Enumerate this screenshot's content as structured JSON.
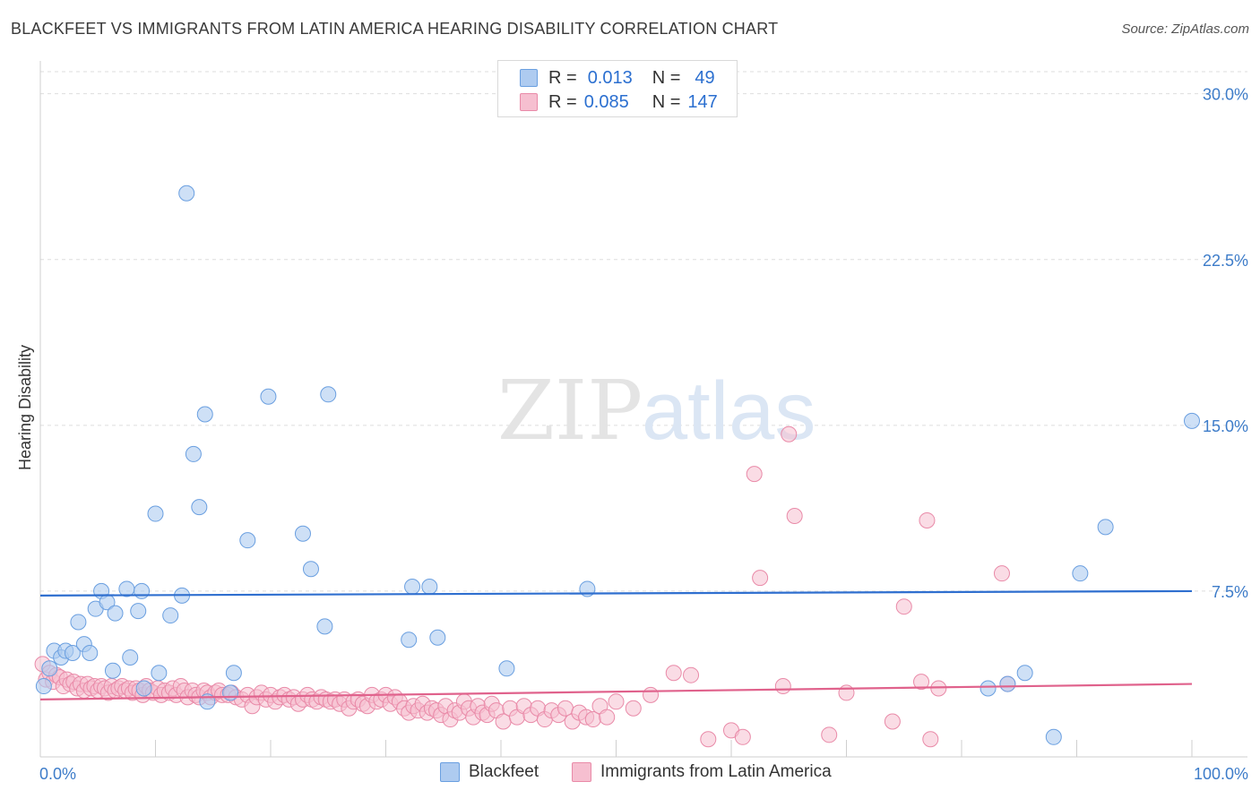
{
  "title": "BLACKFEET VS IMMIGRANTS FROM LATIN AMERICA HEARING DISABILITY CORRELATION CHART",
  "source": "Source: ZipAtlas.com",
  "watermark": {
    "zip": "ZIP",
    "atlas": "atlas"
  },
  "legend": {
    "rows": [
      {
        "r_label": "R =",
        "r_value": "0.013",
        "n_label": "N =",
        "n_value": "49"
      },
      {
        "r_label": "R =",
        "r_value": "0.085",
        "n_label": "N =",
        "n_value": "147"
      }
    ]
  },
  "bottom_legend": {
    "series1": "Blackfeet",
    "series2": "Immigrants from Latin America"
  },
  "colors": {
    "blue_fill": "#aecbf0",
    "blue_stroke": "#6a9fe0",
    "blue_line": "#2f6fcf",
    "pink_fill": "#f6bfd0",
    "pink_stroke": "#e98aa8",
    "pink_line": "#e0628c",
    "tick_text": "#3d7cc9",
    "grid": "#dddddd"
  },
  "chart_data": {
    "type": "scatter",
    "title": "BLACKFEET VS IMMIGRANTS FROM LATIN AMERICA HEARING DISABILITY CORRELATION CHART",
    "xlabel": "",
    "ylabel": "Hearing Disability",
    "xlim": [
      0,
      100
    ],
    "ylim": [
      0,
      31
    ],
    "x_tick_labels": [
      "0.0%",
      "100.0%"
    ],
    "y_ticks": [
      7.5,
      15.0,
      22.5,
      30.0
    ],
    "y_tick_labels": [
      "7.5%",
      "15.0%",
      "22.5%",
      "30.0%"
    ],
    "grid": true,
    "series": [
      {
        "name": "Blackfeet",
        "R": 0.013,
        "N": 49,
        "trend": {
          "x": [
            0,
            100
          ],
          "y": [
            7.3,
            7.5
          ]
        },
        "points": [
          [
            0.3,
            3.2
          ],
          [
            0.8,
            4.0
          ],
          [
            1.2,
            4.8
          ],
          [
            1.8,
            4.5
          ],
          [
            2.2,
            4.8
          ],
          [
            2.8,
            4.7
          ],
          [
            3.3,
            6.1
          ],
          [
            3.8,
            5.1
          ],
          [
            4.3,
            4.7
          ],
          [
            4.8,
            6.7
          ],
          [
            5.3,
            7.5
          ],
          [
            5.8,
            7.0
          ],
          [
            6.5,
            6.5
          ],
          [
            6.3,
            3.9
          ],
          [
            7.5,
            7.6
          ],
          [
            7.8,
            4.5
          ],
          [
            8.5,
            6.6
          ],
          [
            8.8,
            7.5
          ],
          [
            9.0,
            3.1
          ],
          [
            10.0,
            11.0
          ],
          [
            10.3,
            3.8
          ],
          [
            11.3,
            6.4
          ],
          [
            12.3,
            7.3
          ],
          [
            12.7,
            25.5
          ],
          [
            13.3,
            13.7
          ],
          [
            13.8,
            11.3
          ],
          [
            14.3,
            15.5
          ],
          [
            14.5,
            2.5
          ],
          [
            16.5,
            2.9
          ],
          [
            16.8,
            3.8
          ],
          [
            18.0,
            9.8
          ],
          [
            19.8,
            16.3
          ],
          [
            22.8,
            10.1
          ],
          [
            23.5,
            8.5
          ],
          [
            24.7,
            5.9
          ],
          [
            25.0,
            16.4
          ],
          [
            32.0,
            5.3
          ],
          [
            32.3,
            7.7
          ],
          [
            33.8,
            7.7
          ],
          [
            34.5,
            5.4
          ],
          [
            40.5,
            4.0
          ],
          [
            47.5,
            7.6
          ],
          [
            82.3,
            3.1
          ],
          [
            84.0,
            3.3
          ],
          [
            85.5,
            3.8
          ],
          [
            88.0,
            0.9
          ],
          [
            90.3,
            8.3
          ],
          [
            92.5,
            10.4
          ],
          [
            100.0,
            15.2
          ]
        ]
      },
      {
        "name": "Immigrants from Latin America",
        "R": 0.085,
        "N": 147,
        "trend": {
          "x": [
            0,
            100
          ],
          "y": [
            2.6,
            3.3
          ]
        },
        "points": [
          [
            0.2,
            4.2
          ],
          [
            0.5,
            3.5
          ],
          [
            0.8,
            3.8
          ],
          [
            1.1,
            3.4
          ],
          [
            1.4,
            3.7
          ],
          [
            1.7,
            3.6
          ],
          [
            2.0,
            3.2
          ],
          [
            2.3,
            3.5
          ],
          [
            2.6,
            3.3
          ],
          [
            2.9,
            3.4
          ],
          [
            3.2,
            3.1
          ],
          [
            3.5,
            3.3
          ],
          [
            3.8,
            3.0
          ],
          [
            4.1,
            3.3
          ],
          [
            4.4,
            3.1
          ],
          [
            4.7,
            3.2
          ],
          [
            5.0,
            3.0
          ],
          [
            5.3,
            3.2
          ],
          [
            5.6,
            3.1
          ],
          [
            5.9,
            2.9
          ],
          [
            6.2,
            3.2
          ],
          [
            6.5,
            3.0
          ],
          [
            6.8,
            3.1
          ],
          [
            7.1,
            3.2
          ],
          [
            7.4,
            3.0
          ],
          [
            7.7,
            3.1
          ],
          [
            8.0,
            2.9
          ],
          [
            8.3,
            3.1
          ],
          [
            8.6,
            3.0
          ],
          [
            8.9,
            2.8
          ],
          [
            9.2,
            3.2
          ],
          [
            9.5,
            3.0
          ],
          [
            9.8,
            2.9
          ],
          [
            10.2,
            3.1
          ],
          [
            10.5,
            2.8
          ],
          [
            10.8,
            3.0
          ],
          [
            11.2,
            2.9
          ],
          [
            11.5,
            3.1
          ],
          [
            11.8,
            2.8
          ],
          [
            12.2,
            3.2
          ],
          [
            12.5,
            3.0
          ],
          [
            12.8,
            2.7
          ],
          [
            13.2,
            3.0
          ],
          [
            13.5,
            2.8
          ],
          [
            13.8,
            2.7
          ],
          [
            14.2,
            3.0
          ],
          [
            14.5,
            2.9
          ],
          [
            14.8,
            2.7
          ],
          [
            15.2,
            2.9
          ],
          [
            15.5,
            3.0
          ],
          [
            15.8,
            2.8
          ],
          [
            16.3,
            2.8
          ],
          [
            16.6,
            2.9
          ],
          [
            17.0,
            2.7
          ],
          [
            17.5,
            2.6
          ],
          [
            18.0,
            2.8
          ],
          [
            18.4,
            2.3
          ],
          [
            18.8,
            2.7
          ],
          [
            19.2,
            2.9
          ],
          [
            19.6,
            2.6
          ],
          [
            20.0,
            2.8
          ],
          [
            20.4,
            2.5
          ],
          [
            20.8,
            2.7
          ],
          [
            21.2,
            2.8
          ],
          [
            21.6,
            2.6
          ],
          [
            22.0,
            2.7
          ],
          [
            22.4,
            2.4
          ],
          [
            22.8,
            2.6
          ],
          [
            23.2,
            2.8
          ],
          [
            23.6,
            2.6
          ],
          [
            24.0,
            2.5
          ],
          [
            24.4,
            2.7
          ],
          [
            24.8,
            2.6
          ],
          [
            25.2,
            2.5
          ],
          [
            25.6,
            2.6
          ],
          [
            26.0,
            2.4
          ],
          [
            26.4,
            2.6
          ],
          [
            26.8,
            2.2
          ],
          [
            27.2,
            2.5
          ],
          [
            27.6,
            2.6
          ],
          [
            28.0,
            2.4
          ],
          [
            28.4,
            2.3
          ],
          [
            28.8,
            2.8
          ],
          [
            29.2,
            2.5
          ],
          [
            29.6,
            2.6
          ],
          [
            30.0,
            2.8
          ],
          [
            30.4,
            2.4
          ],
          [
            30.8,
            2.7
          ],
          [
            31.2,
            2.5
          ],
          [
            31.6,
            2.2
          ],
          [
            32.0,
            2.0
          ],
          [
            32.4,
            2.3
          ],
          [
            32.8,
            2.1
          ],
          [
            33.2,
            2.4
          ],
          [
            33.6,
            2.0
          ],
          [
            34.0,
            2.2
          ],
          [
            34.4,
            2.1
          ],
          [
            34.8,
            1.9
          ],
          [
            35.2,
            2.3
          ],
          [
            35.6,
            1.7
          ],
          [
            36.0,
            2.1
          ],
          [
            36.4,
            2.0
          ],
          [
            36.8,
            2.5
          ],
          [
            37.2,
            2.2
          ],
          [
            37.6,
            1.8
          ],
          [
            38.0,
            2.3
          ],
          [
            38.4,
            2.0
          ],
          [
            38.8,
            1.9
          ],
          [
            39.2,
            2.4
          ],
          [
            39.6,
            2.1
          ],
          [
            40.2,
            1.6
          ],
          [
            40.8,
            2.2
          ],
          [
            41.4,
            1.8
          ],
          [
            42.0,
            2.3
          ],
          [
            42.6,
            1.9
          ],
          [
            43.2,
            2.2
          ],
          [
            43.8,
            1.7
          ],
          [
            44.4,
            2.1
          ],
          [
            45.0,
            1.9
          ],
          [
            45.6,
            2.2
          ],
          [
            46.2,
            1.6
          ],
          [
            46.8,
            2.0
          ],
          [
            47.4,
            1.8
          ],
          [
            48.0,
            1.7
          ],
          [
            48.6,
            2.3
          ],
          [
            49.2,
            1.8
          ],
          [
            50.0,
            2.5
          ],
          [
            51.5,
            2.2
          ],
          [
            53.0,
            2.8
          ],
          [
            55.0,
            3.8
          ],
          [
            56.5,
            3.7
          ],
          [
            58.0,
            0.8
          ],
          [
            60.0,
            1.2
          ],
          [
            61.0,
            0.9
          ],
          [
            62.0,
            12.8
          ],
          [
            62.5,
            8.1
          ],
          [
            64.5,
            3.2
          ],
          [
            65.0,
            14.6
          ],
          [
            65.5,
            10.9
          ],
          [
            68.5,
            1.0
          ],
          [
            70.0,
            2.9
          ],
          [
            74.0,
            1.6
          ],
          [
            75.0,
            6.8
          ],
          [
            76.5,
            3.4
          ],
          [
            77.0,
            10.7
          ],
          [
            77.3,
            0.8
          ],
          [
            78.0,
            3.1
          ],
          [
            83.5,
            8.3
          ],
          [
            84.0,
            3.3
          ]
        ]
      }
    ]
  }
}
